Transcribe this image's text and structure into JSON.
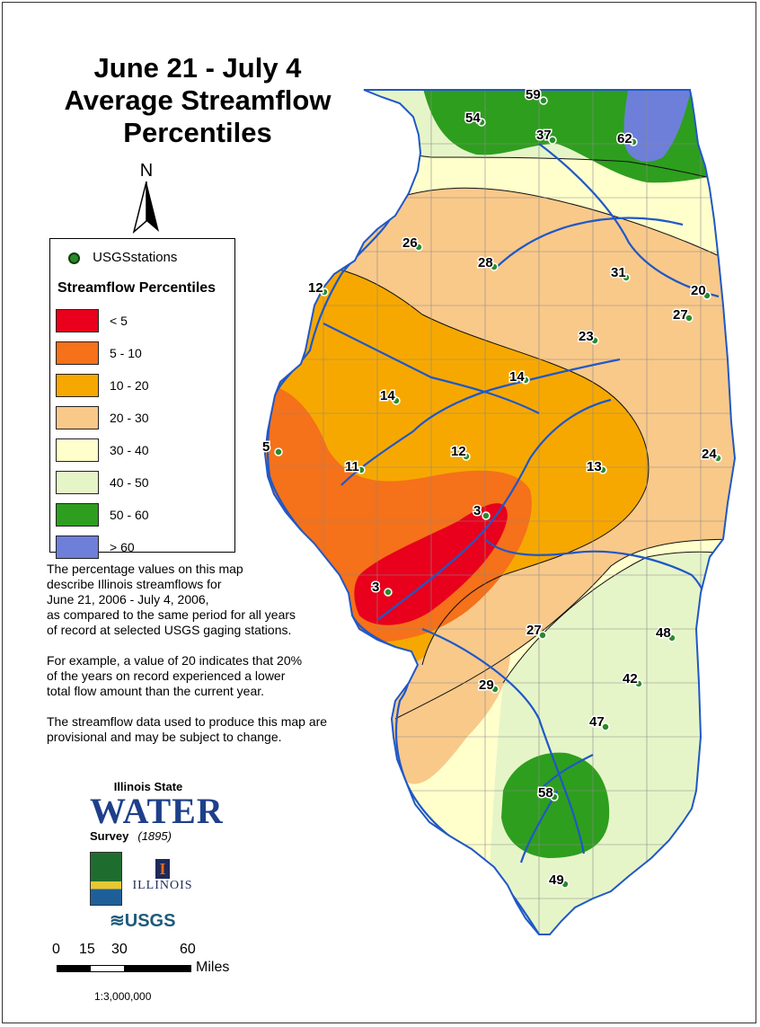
{
  "title": {
    "line1": "June 21 - July 4",
    "line2": "Average Streamflow",
    "line3": "Percentiles"
  },
  "north_label": "N",
  "legend": {
    "station_label": "USGSstations",
    "heading": "Streamflow Percentiles",
    "classes": [
      {
        "label": "< 5",
        "color": "#e8001c"
      },
      {
        "label": "5 - 10",
        "color": "#f5711a"
      },
      {
        "label": "10 - 20",
        "color": "#f7a800"
      },
      {
        "label": "20 - 30",
        "color": "#f9c98a"
      },
      {
        "label": "30 - 40",
        "color": "#ffffcc"
      },
      {
        "label": "40 - 50",
        "color": "#e6f5c8"
      },
      {
        "label": "50 - 60",
        "color": "#2e9e1e"
      },
      {
        "label": "> 60",
        "color": "#6e7fd9"
      }
    ]
  },
  "description": {
    "p1_l1": "The percentage values on this map",
    "p1_l2": "describe Illinois streamflows for",
    "p1_l3": "June 21, 2006 - July 4, 2006,",
    "p1_l4": "as compared to the same period for all years",
    "p1_l5": "of record at selected USGS gaging stations.",
    "p2_l1": "For example, a value of 20 indicates that 20%",
    "p2_l2": "of the years on record experienced a lower",
    "p2_l3": "total flow amount than the current year.",
    "p3_l1": "The streamflow data used to produce this map are",
    "p3_l2": "provisional and may be subject to change."
  },
  "logos": {
    "isws_line1": "Illinois State",
    "isws_water": "WATER",
    "isws_line3": "Survey",
    "isws_year": "(1895)",
    "illinois_mark": "I",
    "illinois_word": "ILLINOIS",
    "usgs": "≋USGS"
  },
  "scale": {
    "ticks": [
      "0",
      "15",
      "30",
      "60"
    ],
    "unit": "Miles",
    "ratio": "1:3,000,000"
  },
  "stations": [
    {
      "value": "59"
    },
    {
      "value": "54"
    },
    {
      "value": "37"
    },
    {
      "value": "62"
    },
    {
      "value": "26"
    },
    {
      "value": "28"
    },
    {
      "value": "31"
    },
    {
      "value": "20"
    },
    {
      "value": "12"
    },
    {
      "value": "27"
    },
    {
      "value": "23"
    },
    {
      "value": "14"
    },
    {
      "value": "14"
    },
    {
      "value": "5"
    },
    {
      "value": "11"
    },
    {
      "value": "12"
    },
    {
      "value": "13"
    },
    {
      "value": "24"
    },
    {
      "value": "3"
    },
    {
      "value": "3"
    },
    {
      "value": "27"
    },
    {
      "value": "48"
    },
    {
      "value": "42"
    },
    {
      "value": "29"
    },
    {
      "value": "47"
    },
    {
      "value": "58"
    },
    {
      "value": "49"
    }
  ]
}
